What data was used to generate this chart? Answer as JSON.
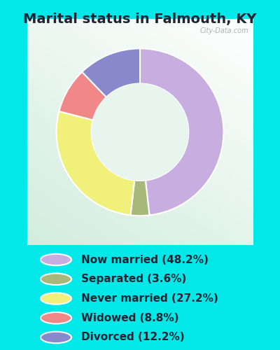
{
  "title": "Marital status in Falmouth, KY",
  "slices": [
    48.2,
    3.6,
    27.2,
    8.8,
    12.2
  ],
  "labels": [
    "Now married (48.2%)",
    "Separated (3.6%)",
    "Never married (27.2%)",
    "Widowed (8.8%)",
    "Divorced (12.2%)"
  ],
  "colors": [
    "#c8aee0",
    "#a8b87a",
    "#f0f07a",
    "#f08888",
    "#8888cc"
  ],
  "legend_colors": [
    "#c8aee0",
    "#a8b87a",
    "#f0f07a",
    "#f08888",
    "#8888cc"
  ],
  "background_cyan": "#00e8e8",
  "chart_bg": "#d8ede0",
  "title_fontsize": 14,
  "legend_fontsize": 11,
  "watermark": "City-Data.com",
  "start_angle": 90,
  "title_color": "#222233"
}
